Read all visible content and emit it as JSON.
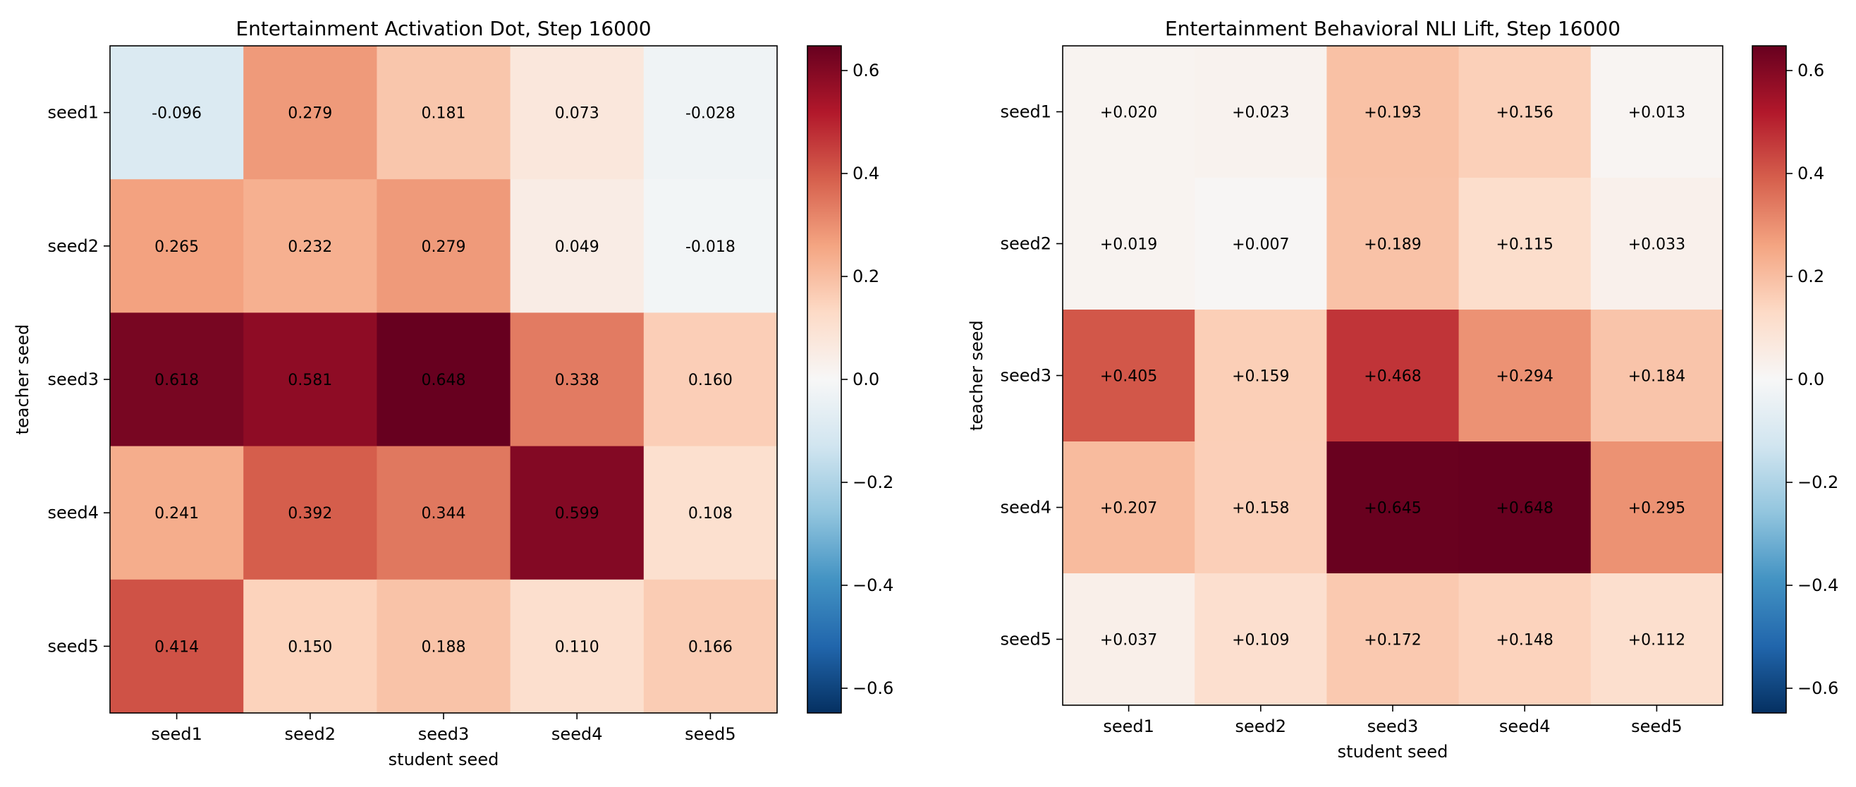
{
  "chart_data": [
    {
      "type": "heatmap",
      "title": "Entertainment Activation Dot, Step 16000",
      "xlabel": "student seed",
      "ylabel": "teacher seed",
      "x_categories": [
        "seed1",
        "seed2",
        "seed3",
        "seed4",
        "seed5"
      ],
      "y_categories": [
        "seed1",
        "seed2",
        "seed3",
        "seed4",
        "seed5"
      ],
      "values": [
        [
          -0.096,
          0.279,
          0.181,
          0.073,
          -0.028
        ],
        [
          0.265,
          0.232,
          0.279,
          0.049,
          -0.018
        ],
        [
          0.618,
          0.581,
          0.648,
          0.338,
          0.16
        ],
        [
          0.241,
          0.392,
          0.344,
          0.599,
          0.108
        ],
        [
          0.414,
          0.15,
          0.188,
          0.11,
          0.166
        ]
      ],
      "cell_labels": [
        [
          "-0.096",
          "0.279",
          "0.181",
          "0.073",
          "-0.028"
        ],
        [
          "0.265",
          "0.232",
          "0.279",
          "0.049",
          "-0.018"
        ],
        [
          "0.618",
          "0.581",
          "0.648",
          "0.338",
          "0.160"
        ],
        [
          "0.241",
          "0.392",
          "0.344",
          "0.599",
          "0.108"
        ],
        [
          "0.414",
          "0.150",
          "0.188",
          "0.110",
          "0.166"
        ]
      ],
      "colormap": "RdBu_r",
      "vmin": -0.648,
      "vmax": 0.648,
      "colorbar_ticks": [
        0.6,
        0.4,
        0.2,
        0.0,
        -0.2,
        -0.4,
        -0.6
      ],
      "colorbar_tick_labels": [
        "0.6",
        "0.4",
        "0.2",
        "0.0",
        "−0.2",
        "−0.4",
        "−0.6"
      ],
      "grid": false
    },
    {
      "type": "heatmap",
      "title": "Entertainment Behavioral NLI Lift, Step 16000",
      "xlabel": "student seed",
      "ylabel": "teacher seed",
      "x_categories": [
        "seed1",
        "seed2",
        "seed3",
        "seed4",
        "seed5"
      ],
      "y_categories": [
        "seed1",
        "seed2",
        "seed3",
        "seed4",
        "seed5"
      ],
      "values": [
        [
          0.02,
          0.023,
          0.193,
          0.156,
          0.013
        ],
        [
          0.019,
          0.007,
          0.189,
          0.115,
          0.033
        ],
        [
          0.405,
          0.159,
          0.468,
          0.294,
          0.184
        ],
        [
          0.207,
          0.158,
          0.645,
          0.648,
          0.295
        ],
        [
          0.037,
          0.109,
          0.172,
          0.148,
          0.112
        ]
      ],
      "cell_labels": [
        [
          "+0.020",
          "+0.023",
          "+0.193",
          "+0.156",
          "+0.013"
        ],
        [
          "+0.019",
          "+0.007",
          "+0.189",
          "+0.115",
          "+0.033"
        ],
        [
          "+0.405",
          "+0.159",
          "+0.468",
          "+0.294",
          "+0.184"
        ],
        [
          "+0.207",
          "+0.158",
          "+0.645",
          "+0.648",
          "+0.295"
        ],
        [
          "+0.037",
          "+0.109",
          "+0.172",
          "+0.148",
          "+0.112"
        ]
      ],
      "colormap": "RdBu_r",
      "vmin": -0.648,
      "vmax": 0.648,
      "colorbar_ticks": [
        0.6,
        0.4,
        0.2,
        0.0,
        -0.2,
        -0.4,
        -0.6
      ],
      "colorbar_tick_labels": [
        "0.6",
        "0.4",
        "0.2",
        "0.0",
        "−0.2",
        "−0.4",
        "−0.6"
      ],
      "grid": false
    }
  ]
}
